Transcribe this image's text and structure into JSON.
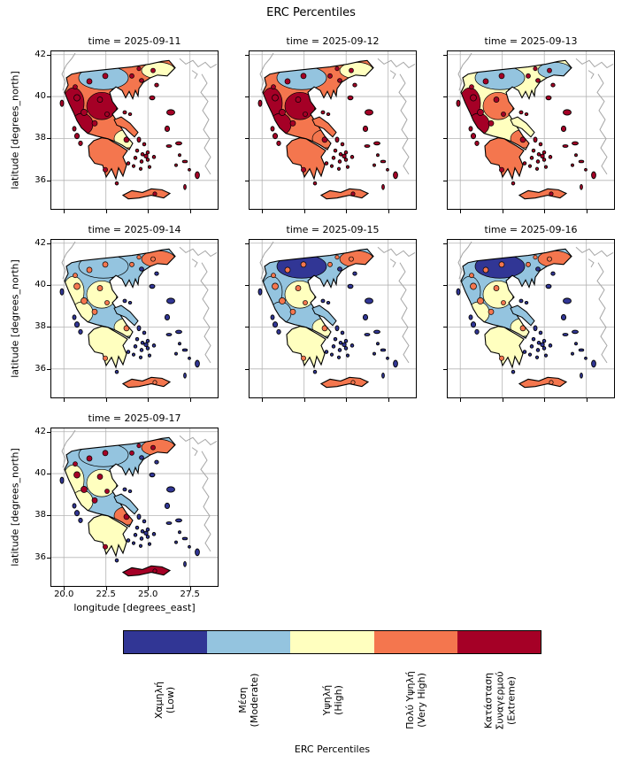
{
  "chart_data": {
    "type": "heatmap",
    "suptitle": "ERC Percentiles",
    "xlabel": "longitude [degrees_east]",
    "ylabel": "latitude [degrees_north]",
    "x_ticks": [
      "20.0",
      "22.5",
      "25.0",
      "27.5"
    ],
    "y_ticks": [
      "42",
      "40",
      "38",
      "36"
    ],
    "x_range_degrees_east": [
      19.2,
      29.2
    ],
    "y_range_degrees_north": [
      34.6,
      42.2
    ],
    "grid": true,
    "region_shown": "Greece",
    "legend_position": "bottom-colorbar",
    "colorbar": {
      "label": "ERC Percentiles",
      "categories": [
        {
          "key": "low",
          "lines": [
            "Χαμηλή",
            "(Low)"
          ],
          "color": "#313695"
        },
        {
          "key": "moderate",
          "lines": [
            "Μέση",
            "(Moderate)"
          ],
          "color": "#94c4df"
        },
        {
          "key": "high",
          "lines": [
            "Υψηλή",
            "(High)"
          ],
          "color": "#ffffbf"
        },
        {
          "key": "very_high",
          "lines": [
            "Πολύ Υψηλή",
            "(Very High)"
          ],
          "color": "#f4764e"
        },
        {
          "key": "extreme",
          "lines": [
            "Κατάσταση",
            "Συναγερμού",
            "(Extreme)"
          ],
          "color": "#a50026"
        }
      ]
    },
    "facets": [
      {
        "title": "time = 2025-09-11",
        "regions": {
          "base": "very_high",
          "nw": "extreme",
          "north": "moderate",
          "ne": "high",
          "center": "extreme",
          "west": "extreme",
          "attica": "high",
          "euboea": "very_high",
          "pelop": "very_high",
          "crete": "very_high",
          "islands": "extreme",
          "hotspots": "extreme"
        }
      },
      {
        "title": "time = 2025-09-12",
        "regions": {
          "base": "very_high",
          "nw": "extreme",
          "north": "moderate",
          "ne": "high",
          "center": "extreme",
          "west": "extreme",
          "attica": "very_high",
          "euboea": "very_high",
          "pelop": "very_high",
          "crete": "very_high",
          "islands": "extreme",
          "hotspots": "extreme"
        }
      },
      {
        "title": "time = 2025-09-13",
        "regions": {
          "base": "high",
          "nw": "extreme",
          "north": "moderate",
          "ne": "moderate",
          "center": "very_high",
          "west": "extreme",
          "attica": "very_high",
          "euboea": "high",
          "pelop": "very_high",
          "crete": "very_high",
          "islands": "extreme",
          "hotspots": "extreme"
        }
      },
      {
        "title": "time = 2025-09-14",
        "regions": {
          "base": "moderate",
          "nw": "high",
          "north": "moderate",
          "ne": "very_high",
          "center": "high",
          "west": "high",
          "attica": "high",
          "euboea": "moderate",
          "pelop": "high",
          "crete": "very_high",
          "islands": "low",
          "hotspots": "very_high"
        }
      },
      {
        "title": "time = 2025-09-15",
        "regions": {
          "base": "moderate",
          "nw": "moderate",
          "north": "low",
          "ne": "very_high",
          "center": "high",
          "west": "moderate",
          "attica": "high",
          "euboea": "moderate",
          "pelop": "high",
          "crete": "very_high",
          "islands": "low",
          "hotspots": "very_high"
        }
      },
      {
        "title": "time = 2025-09-16",
        "regions": {
          "base": "moderate",
          "nw": "moderate",
          "north": "low",
          "ne": "very_high",
          "center": "high",
          "west": "high",
          "attica": "high",
          "euboea": "moderate",
          "pelop": "high",
          "crete": "very_high",
          "islands": "low",
          "hotspots": "very_high"
        }
      },
      {
        "title": "time = 2025-09-17",
        "regions": {
          "base": "moderate",
          "nw": "high",
          "north": "moderate",
          "ne": "very_high",
          "center": "high",
          "west": "high",
          "attica": "very_high",
          "euboea": "moderate",
          "pelop": "high",
          "crete": "extreme",
          "islands": "low",
          "hotspots": "extreme"
        }
      }
    ]
  }
}
